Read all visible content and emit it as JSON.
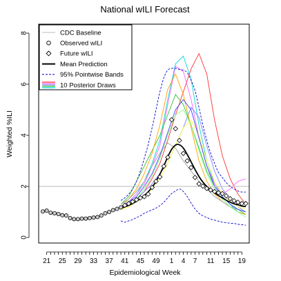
{
  "chart_data": {
    "type": "line",
    "title": "National wILI Forecast",
    "xlabel": "Epidemiological Week",
    "ylabel": "Weighted %ILI",
    "x_index_range": [
      0,
      52
    ],
    "ylim": [
      0,
      8
    ],
    "x_ticks": [
      {
        "i": 1,
        "label": "21"
      },
      {
        "i": 2,
        "label": ""
      },
      {
        "i": 3,
        "label": ""
      },
      {
        "i": 4,
        "label": ""
      },
      {
        "i": 5,
        "label": "25"
      },
      {
        "i": 6,
        "label": ""
      },
      {
        "i": 7,
        "label": ""
      },
      {
        "i": 8,
        "label": ""
      },
      {
        "i": 9,
        "label": "29"
      },
      {
        "i": 10,
        "label": ""
      },
      {
        "i": 11,
        "label": ""
      },
      {
        "i": 12,
        "label": ""
      },
      {
        "i": 13,
        "label": "33"
      },
      {
        "i": 14,
        "label": ""
      },
      {
        "i": 15,
        "label": ""
      },
      {
        "i": 16,
        "label": ""
      },
      {
        "i": 17,
        "label": "37"
      },
      {
        "i": 18,
        "label": ""
      },
      {
        "i": 19,
        "label": ""
      },
      {
        "i": 20,
        "label": ""
      },
      {
        "i": 21,
        "label": "41"
      },
      {
        "i": 22,
        "label": ""
      },
      {
        "i": 23,
        "label": ""
      },
      {
        "i": 24,
        "label": ""
      },
      {
        "i": 25,
        "label": "45"
      },
      {
        "i": 26,
        "label": ""
      },
      {
        "i": 27,
        "label": ""
      },
      {
        "i": 28,
        "label": ""
      },
      {
        "i": 29,
        "label": "49"
      },
      {
        "i": 30,
        "label": ""
      },
      {
        "i": 31,
        "label": ""
      },
      {
        "i": 32,
        "label": ""
      },
      {
        "i": 33,
        "label": "1"
      },
      {
        "i": 34,
        "label": ""
      },
      {
        "i": 35,
        "label": ""
      },
      {
        "i": 36,
        "label": "4"
      },
      {
        "i": 37,
        "label": ""
      },
      {
        "i": 38,
        "label": ""
      },
      {
        "i": 39,
        "label": "7"
      },
      {
        "i": 40,
        "label": ""
      },
      {
        "i": 41,
        "label": ""
      },
      {
        "i": 42,
        "label": ""
      },
      {
        "i": 43,
        "label": "11"
      },
      {
        "i": 44,
        "label": ""
      },
      {
        "i": 45,
        "label": ""
      },
      {
        "i": 46,
        "label": ""
      },
      {
        "i": 47,
        "label": "15"
      },
      {
        "i": 48,
        "label": ""
      },
      {
        "i": 49,
        "label": ""
      },
      {
        "i": 50,
        "label": ""
      },
      {
        "i": 51,
        "label": "19"
      }
    ],
    "y_ticks": [
      0,
      2,
      4,
      6,
      8
    ],
    "cdc_baseline": 2.0,
    "observed_wili": {
      "x_index": [
        0,
        1,
        2,
        3,
        4,
        5,
        6,
        7,
        8,
        9,
        10,
        11,
        12,
        13,
        14,
        15,
        16,
        17,
        18,
        19,
        20
      ],
      "values": [
        1.02,
        1.05,
        0.97,
        0.95,
        0.92,
        0.87,
        0.86,
        0.76,
        0.72,
        0.72,
        0.74,
        0.74,
        0.76,
        0.78,
        0.8,
        0.86,
        0.95,
        1.0,
        1.07,
        1.12,
        1.18
      ]
    },
    "future_wili": {
      "x_index": [
        21,
        22,
        23,
        24,
        25,
        26,
        27,
        28,
        29,
        30,
        31,
        32,
        33,
        34,
        35,
        36,
        37,
        38,
        39,
        40,
        41,
        42,
        43,
        44,
        45,
        46,
        47,
        48,
        49,
        50,
        51,
        52
      ],
      "values": [
        1.26,
        1.33,
        1.4,
        1.48,
        1.55,
        1.6,
        1.7,
        1.96,
        2.2,
        2.37,
        2.79,
        3.14,
        4.61,
        4.26,
        3.8,
        3.29,
        3.0,
        2.74,
        2.35,
        2.1,
        2.01,
        1.92,
        1.86,
        1.8,
        1.75,
        1.72,
        1.63,
        1.52,
        1.44,
        1.38,
        1.33,
        1.33
      ]
    },
    "mean_prediction": {
      "x_index": [
        20,
        21,
        22,
        23,
        24,
        25,
        26,
        27,
        28,
        29,
        30,
        31,
        32,
        33,
        34,
        35,
        36,
        37,
        38,
        39,
        40,
        41,
        42,
        43,
        44,
        45,
        46,
        47,
        48,
        49,
        50,
        51,
        52
      ],
      "values": [
        1.15,
        1.2,
        1.26,
        1.33,
        1.42,
        1.52,
        1.64,
        1.79,
        1.97,
        2.2,
        2.48,
        2.8,
        3.15,
        3.45,
        3.62,
        3.63,
        3.5,
        3.25,
        2.96,
        2.66,
        2.39,
        2.17,
        2.0,
        1.86,
        1.75,
        1.64,
        1.55,
        1.46,
        1.38,
        1.32,
        1.28,
        1.23,
        1.21
      ]
    },
    "band_upper": {
      "x_index": [
        20,
        21,
        22,
        23,
        24,
        25,
        26,
        27,
        28,
        29,
        30,
        31,
        32,
        33,
        34,
        35,
        36,
        37,
        38,
        39,
        40,
        41,
        42,
        43,
        44,
        45,
        46,
        47,
        48,
        49,
        50,
        51,
        52
      ],
      "values": [
        1.45,
        1.55,
        1.7,
        1.9,
        2.2,
        2.6,
        3.1,
        3.65,
        4.3,
        5.0,
        5.7,
        6.25,
        6.55,
        6.62,
        6.62,
        6.58,
        6.55,
        6.45,
        6.15,
        5.75,
        5.1,
        4.4,
        3.8,
        3.3,
        2.9,
        2.55,
        2.35,
        2.15,
        2.0,
        1.9,
        1.82,
        1.78,
        1.78
      ]
    },
    "band_lower": {
      "x_index": [
        20,
        21,
        22,
        23,
        24,
        25,
        26,
        27,
        28,
        29,
        30,
        31,
        32,
        33,
        34,
        35,
        36,
        37,
        38,
        39,
        40,
        41,
        42,
        43,
        44,
        45,
        46,
        47,
        48,
        49,
        50,
        51,
        52
      ],
      "values": [
        0.65,
        0.6,
        0.65,
        0.7,
        0.78,
        0.85,
        0.95,
        1.02,
        1.08,
        1.15,
        1.25,
        1.38,
        1.55,
        1.72,
        1.82,
        1.9,
        1.8,
        1.6,
        1.35,
        1.12,
        0.95,
        0.85,
        0.78,
        0.72,
        0.68,
        0.64,
        0.6,
        0.58,
        0.56,
        0.55,
        0.52,
        0.5,
        0.48
      ]
    },
    "posterior_draws": [
      {
        "color": "#00d8d8",
        "x_index": [
          20,
          22,
          24,
          26,
          28,
          30,
          32,
          34,
          36,
          38,
          40,
          42,
          44,
          46,
          48,
          50,
          52
        ],
        "values": [
          1.2,
          1.4,
          1.7,
          2.2,
          2.9,
          3.8,
          5.4,
          6.8,
          7.1,
          6.2,
          4.4,
          3.0,
          2.1,
          1.6,
          1.3,
          1.0,
          0.9
        ]
      },
      {
        "color": "#ff3030",
        "x_index": [
          20,
          22,
          24,
          26,
          28,
          30,
          32,
          34,
          36,
          38,
          40,
          42,
          44,
          46,
          48,
          50,
          52
        ],
        "values": [
          1.1,
          1.3,
          1.5,
          1.8,
          2.3,
          2.9,
          3.8,
          4.8,
          5.7,
          6.6,
          7.2,
          6.4,
          4.6,
          3.2,
          2.3,
          1.7,
          1.3
        ]
      },
      {
        "color": "#ff60ff",
        "x_index": [
          20,
          22,
          24,
          26,
          28,
          30,
          32,
          34,
          36,
          38,
          40,
          42,
          44,
          46,
          48,
          50,
          52
        ],
        "values": [
          1.2,
          1.4,
          1.7,
          2.1,
          2.8,
          3.6,
          5.2,
          6.7,
          6.5,
          5.4,
          3.9,
          2.8,
          2.1,
          1.7,
          1.9,
          2.2,
          2.3
        ]
      },
      {
        "color": "#30c030",
        "x_index": [
          20,
          22,
          24,
          26,
          28,
          30,
          32,
          34,
          36,
          38,
          40,
          42,
          44,
          46,
          48,
          50,
          52
        ],
        "values": [
          1.3,
          1.6,
          2.2,
          2.8,
          3.4,
          4.0,
          4.8,
          5.6,
          5.2,
          4.4,
          3.5,
          2.6,
          2.0,
          1.6,
          1.3,
          1.1,
          0.9
        ]
      },
      {
        "color": "#8080ff",
        "x_index": [
          20,
          22,
          24,
          26,
          28,
          30,
          32,
          34,
          36,
          38,
          40,
          42,
          44,
          46,
          48,
          50,
          52
        ],
        "values": [
          1.2,
          1.3,
          1.5,
          1.8,
          2.1,
          2.5,
          2.9,
          3.6,
          4.3,
          5.1,
          4.7,
          3.6,
          2.6,
          1.9,
          1.5,
          1.2,
          1.0
        ]
      },
      {
        "color": "#ffff40",
        "x_index": [
          20,
          22,
          24,
          26,
          28,
          30,
          32,
          34,
          36,
          38,
          40,
          42,
          44,
          46,
          48,
          50,
          52
        ],
        "values": [
          1.1,
          1.2,
          1.4,
          1.6,
          1.9,
          2.3,
          2.9,
          3.6,
          4.3,
          4.6,
          4.0,
          3.0,
          2.2,
          1.7,
          1.4,
          1.2,
          1.1
        ]
      },
      {
        "color": "#ffa000",
        "x_index": [
          20,
          22,
          24,
          26,
          28,
          30,
          32,
          34,
          36,
          38,
          40,
          42,
          44,
          46,
          48,
          50,
          52
        ],
        "values": [
          1.2,
          1.5,
          1.9,
          2.5,
          3.3,
          4.4,
          5.8,
          6.4,
          5.6,
          4.3,
          3.0,
          2.2,
          1.7,
          1.4,
          1.2,
          1.0,
          0.9
        ]
      },
      {
        "color": "#a0a0a0",
        "x_index": [
          20,
          22,
          24,
          26,
          28,
          30,
          32,
          34,
          36,
          38,
          40,
          42,
          44,
          46,
          48,
          50,
          52
        ],
        "values": [
          1.3,
          1.5,
          1.8,
          2.2,
          2.8,
          3.3,
          3.7,
          3.5,
          3.0,
          2.6,
          2.2,
          1.9,
          1.6,
          1.4,
          1.2,
          1.1,
          1.0
        ]
      },
      {
        "color": "#80ff80",
        "x_index": [
          20,
          22,
          24,
          26,
          28,
          30,
          32,
          34,
          36,
          38,
          40,
          42,
          44,
          46,
          48,
          50,
          52
        ],
        "values": [
          1.1,
          1.3,
          1.5,
          1.9,
          2.4,
          3.1,
          4.0,
          4.8,
          5.0,
          4.4,
          3.4,
          2.5,
          1.9,
          1.5,
          1.2,
          1.0,
          0.8
        ]
      },
      {
        "color": "#4040ff",
        "x_index": [
          20,
          22,
          24,
          26,
          28,
          30,
          32,
          34,
          36,
          38,
          40,
          42,
          44,
          46,
          48,
          50,
          52
        ],
        "values": [
          1.2,
          1.4,
          1.6,
          2.0,
          2.5,
          3.2,
          4.1,
          5.0,
          5.4,
          5.0,
          3.9,
          2.8,
          2.0,
          1.6,
          1.3,
          1.1,
          1.0
        ]
      }
    ],
    "legend": {
      "placement": "top-left",
      "entries": [
        {
          "label": "CDC Baseline",
          "kind": "line",
          "color": "#c8c8c8"
        },
        {
          "label": "Observed wILI",
          "kind": "circle"
        },
        {
          "label": "Future wILI",
          "kind": "diamond"
        },
        {
          "label": "Mean Prediction",
          "kind": "thick-line",
          "color": "#000000"
        },
        {
          "label": "95% Pointwise Bands",
          "kind": "dashed",
          "color": "#0000cc"
        },
        {
          "label": "10 Posterior Draws",
          "kind": "multi-line"
        }
      ]
    }
  }
}
